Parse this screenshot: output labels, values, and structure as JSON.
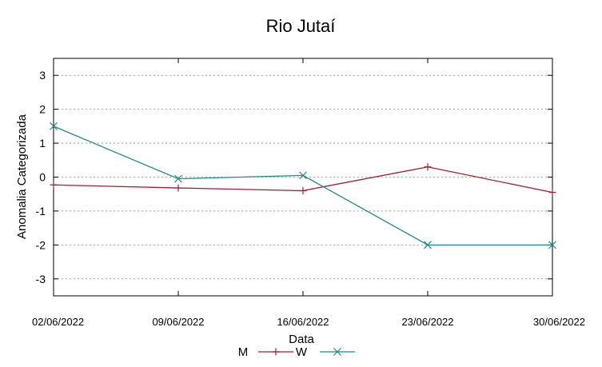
{
  "chart_data": {
    "type": "line",
    "title": "Rio Jutaí",
    "xlabel": "Data",
    "ylabel": "Anomalia Categorizada",
    "categories": [
      "02/06/2022",
      "09/06/2022",
      "16/06/2022",
      "23/06/2022",
      "30/06/2022"
    ],
    "ylim": [
      -3.5,
      3.5
    ],
    "yticks": [
      -3,
      -2,
      -1,
      0,
      1,
      2,
      3
    ],
    "grid": true,
    "legend_position": "bottom",
    "series": [
      {
        "name": "M",
        "values": [
          -0.23,
          -0.32,
          -0.4,
          0.3,
          -0.45
        ],
        "color": "#a0202e",
        "marker": "plus"
      },
      {
        "name": "W",
        "values": [
          1.5,
          -0.05,
          0.05,
          -2.0,
          -2.0
        ],
        "color": "#1f8a8a",
        "marker": "cross"
      }
    ]
  }
}
